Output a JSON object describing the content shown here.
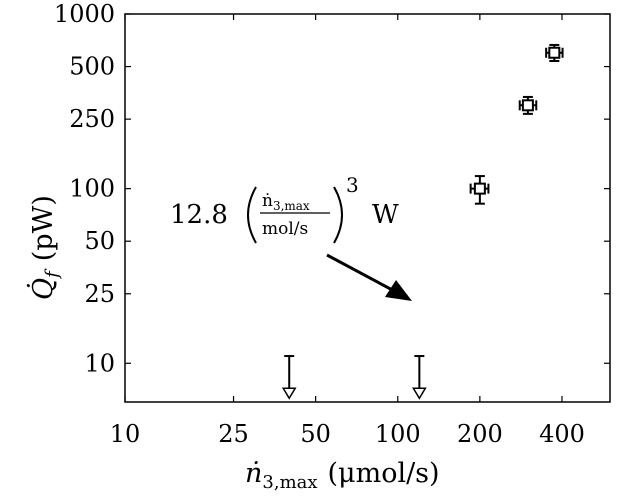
{
  "chart_data": {
    "type": "scatter",
    "scale": {
      "x": "log",
      "y": "log"
    },
    "xlim": [
      10,
      600
    ],
    "ylim": [
      6,
      1000
    ],
    "x_ticks": [
      10,
      25,
      50,
      100,
      200,
      400
    ],
    "x_tick_labels": [
      "10",
      "25",
      "50",
      "100",
      "200",
      "400"
    ],
    "y_ticks": [
      10,
      25,
      50,
      100,
      250,
      500,
      1000
    ],
    "y_tick_labels": [
      "10",
      "25",
      "50",
      "100",
      "250",
      "500",
      "1000"
    ],
    "xlabel": "ṅ3,max (μmol/s)",
    "ylabel": "Q̇f (pW)",
    "xlabel_parts": {
      "n": "ṅ",
      "sub": "3,max",
      "units": "(μmol/s)"
    },
    "ylabel_parts": {
      "q": "Q̇",
      "sub": "f",
      "units": "(pW)"
    },
    "grid": false,
    "points": [
      {
        "x": 200,
        "y": 100,
        "xerr": [
          185,
          215
        ],
        "yerr": [
          82,
          118
        ]
      },
      {
        "x": 300,
        "y": 300,
        "xerr": [
          280,
          322
        ],
        "yerr": [
          268,
          335
        ]
      },
      {
        "x": 375,
        "y": 600,
        "xerr": [
          350,
          402
        ],
        "yerr": [
          538,
          665
        ]
      }
    ],
    "fit": {
      "coefficient": 12.8,
      "exponent": 3,
      "unit": "W",
      "x_range": [
        72,
        402
      ],
      "style": "dotted"
    },
    "upper_limits": [
      {
        "x": 40,
        "y_top": 11,
        "y_bottom": 6.3
      },
      {
        "x": 120,
        "y_top": 11,
        "y_bottom": 6.3
      }
    ],
    "annotation": {
      "coefficient_text": "12.8",
      "numerator_n": "ṅ",
      "numerator_sub": "3,max",
      "denominator": "mol/s",
      "exponent": "3",
      "unit": "W"
    }
  }
}
